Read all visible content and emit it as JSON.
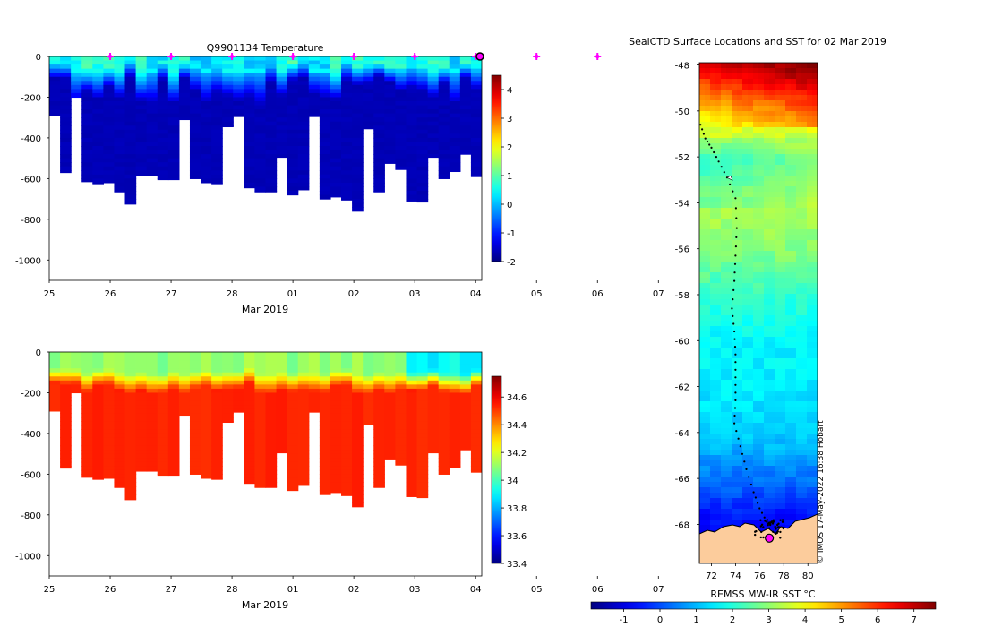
{
  "chart_data": [
    {
      "id": "temperature",
      "type": "heatmap",
      "title": "Q9901134  Temperature",
      "xlabel": "Mar 2019",
      "ylabel": "",
      "x_range": [
        25,
        32.1
      ],
      "y_range": [
        -1100,
        0
      ],
      "x_ticks": [
        "25",
        "26",
        "27",
        "28",
        "01",
        "02",
        "03",
        "04",
        "05",
        "06",
        "07"
      ],
      "y_ticks": [
        0,
        -200,
        -400,
        -600,
        -800,
        -1000
      ],
      "colorbar": {
        "min": -2,
        "max": 4.5,
        "ticks": [
          4,
          3,
          2,
          1,
          0,
          -1,
          -2
        ]
      },
      "marker_days": [
        "26",
        "27",
        "28",
        "01",
        "02",
        "03",
        "04",
        "05",
        "06"
      ],
      "profile_depths_m": [
        290,
        570,
        200,
        615,
        625,
        620,
        665,
        725,
        585,
        585,
        605,
        605,
        310,
        600,
        620,
        625,
        345,
        295,
        645,
        665,
        665,
        495,
        680,
        655,
        295,
        700,
        690,
        705,
        760,
        355,
        665,
        525,
        555,
        710,
        715,
        495,
        600,
        565,
        480,
        590
      ],
      "mixed_layer": {
        "surface_min": 0.4,
        "surface_max": 1.3,
        "thermocline_depth_range_m": [
          80,
          230
        ]
      },
      "deep_value": -1.6
    },
    {
      "id": "salinity",
      "type": "heatmap",
      "title": "",
      "xlabel": "Mar 2019",
      "ylabel": "",
      "x_range": [
        25,
        32.1
      ],
      "y_range": [
        -1100,
        0
      ],
      "x_ticks": [
        "25",
        "26",
        "27",
        "28",
        "01",
        "02",
        "03",
        "04",
        "05",
        "06",
        "07"
      ],
      "y_ticks": [
        0,
        -200,
        -400,
        -600,
        -800,
        -1000
      ],
      "colorbar": {
        "min": 33.4,
        "max": 34.75,
        "ticks": [
          "34.6",
          "34.4",
          "34.2",
          "34",
          "33.8",
          "33.6",
          "33.4"
        ]
      },
      "profile_depths_m": [
        290,
        570,
        200,
        615,
        625,
        620,
        665,
        725,
        585,
        585,
        605,
        605,
        310,
        600,
        620,
        625,
        345,
        295,
        645,
        665,
        665,
        495,
        680,
        655,
        295,
        700,
        690,
        705,
        760,
        355,
        665,
        525,
        555,
        710,
        715,
        495,
        600,
        565,
        480,
        590
      ],
      "surface_values": {
        "early": 34.05,
        "late": 33.85
      },
      "deep_value": 34.55
    },
    {
      "id": "sst-map",
      "type": "heatmap",
      "title": "SealCTD Surface Locations and SST for 02 Mar 2019",
      "xlabel": "REMSS MW-IR SST °C",
      "lat_range": [
        -69.7,
        -47.9
      ],
      "lon_range": [
        71,
        80.8
      ],
      "lat_ticks": [
        "-48",
        "-50",
        "-52",
        "-54",
        "-56",
        "-58",
        "-60",
        "-62",
        "-64",
        "-66",
        "-68"
      ],
      "lon_ticks": [
        "72",
        "74",
        "76",
        "78",
        "80"
      ],
      "colorbar": {
        "min": -1.9,
        "max": 7.6,
        "ticks": [
          "-1",
          "0",
          "1",
          "2",
          "3",
          "4",
          "5",
          "6",
          "7"
        ]
      },
      "sst_by_latitude": [
        {
          "lat": -48,
          "sst": 6.5
        },
        {
          "lat": -50,
          "sst": 4.3
        },
        {
          "lat": -52,
          "sst": 2.7
        },
        {
          "lat": -54,
          "sst": 3.3
        },
        {
          "lat": -56,
          "sst": 2.9
        },
        {
          "lat": -58,
          "sst": 2.1
        },
        {
          "lat": -60,
          "sst": 1.6
        },
        {
          "lat": -62,
          "sst": 1.5
        },
        {
          "lat": -64,
          "sst": 1.2
        },
        {
          "lat": -66,
          "sst": 0.3
        },
        {
          "lat": -68,
          "sst": -0.8
        }
      ],
      "track": [
        {
          "lat": -50.6,
          "lon": 71.1
        },
        {
          "lat": -51.2,
          "lon": 71.5
        },
        {
          "lat": -51.6,
          "lon": 72.0
        },
        {
          "lat": -52.2,
          "lon": 72.6
        },
        {
          "lat": -52.9,
          "lon": 73.3
        },
        {
          "lat": -53.8,
          "lon": 74.0
        },
        {
          "lat": -55.1,
          "lon": 74.1
        },
        {
          "lat": -56.3,
          "lon": 74.0
        },
        {
          "lat": -57.4,
          "lon": 73.9
        },
        {
          "lat": -58.6,
          "lon": 73.7
        },
        {
          "lat": -59.6,
          "lon": 73.9
        },
        {
          "lat": -60.6,
          "lon": 74.0
        },
        {
          "lat": -61.6,
          "lon": 74.0
        },
        {
          "lat": -62.6,
          "lon": 74.0
        },
        {
          "lat": -63.6,
          "lon": 73.9
        },
        {
          "lat": -64.6,
          "lon": 74.4
        },
        {
          "lat": -65.6,
          "lon": 74.9
        },
        {
          "lat": -66.6,
          "lon": 75.5
        },
        {
          "lat": -67.3,
          "lon": 76.0
        },
        {
          "lat": -67.9,
          "lon": 76.6
        },
        {
          "lat": -68.3,
          "lon": 76.9
        }
      ],
      "current_location": {
        "lat": -68.6,
        "lon": 76.8
      },
      "credit": "© IMOS 17-May-2022 16:38 Hobart"
    }
  ]
}
